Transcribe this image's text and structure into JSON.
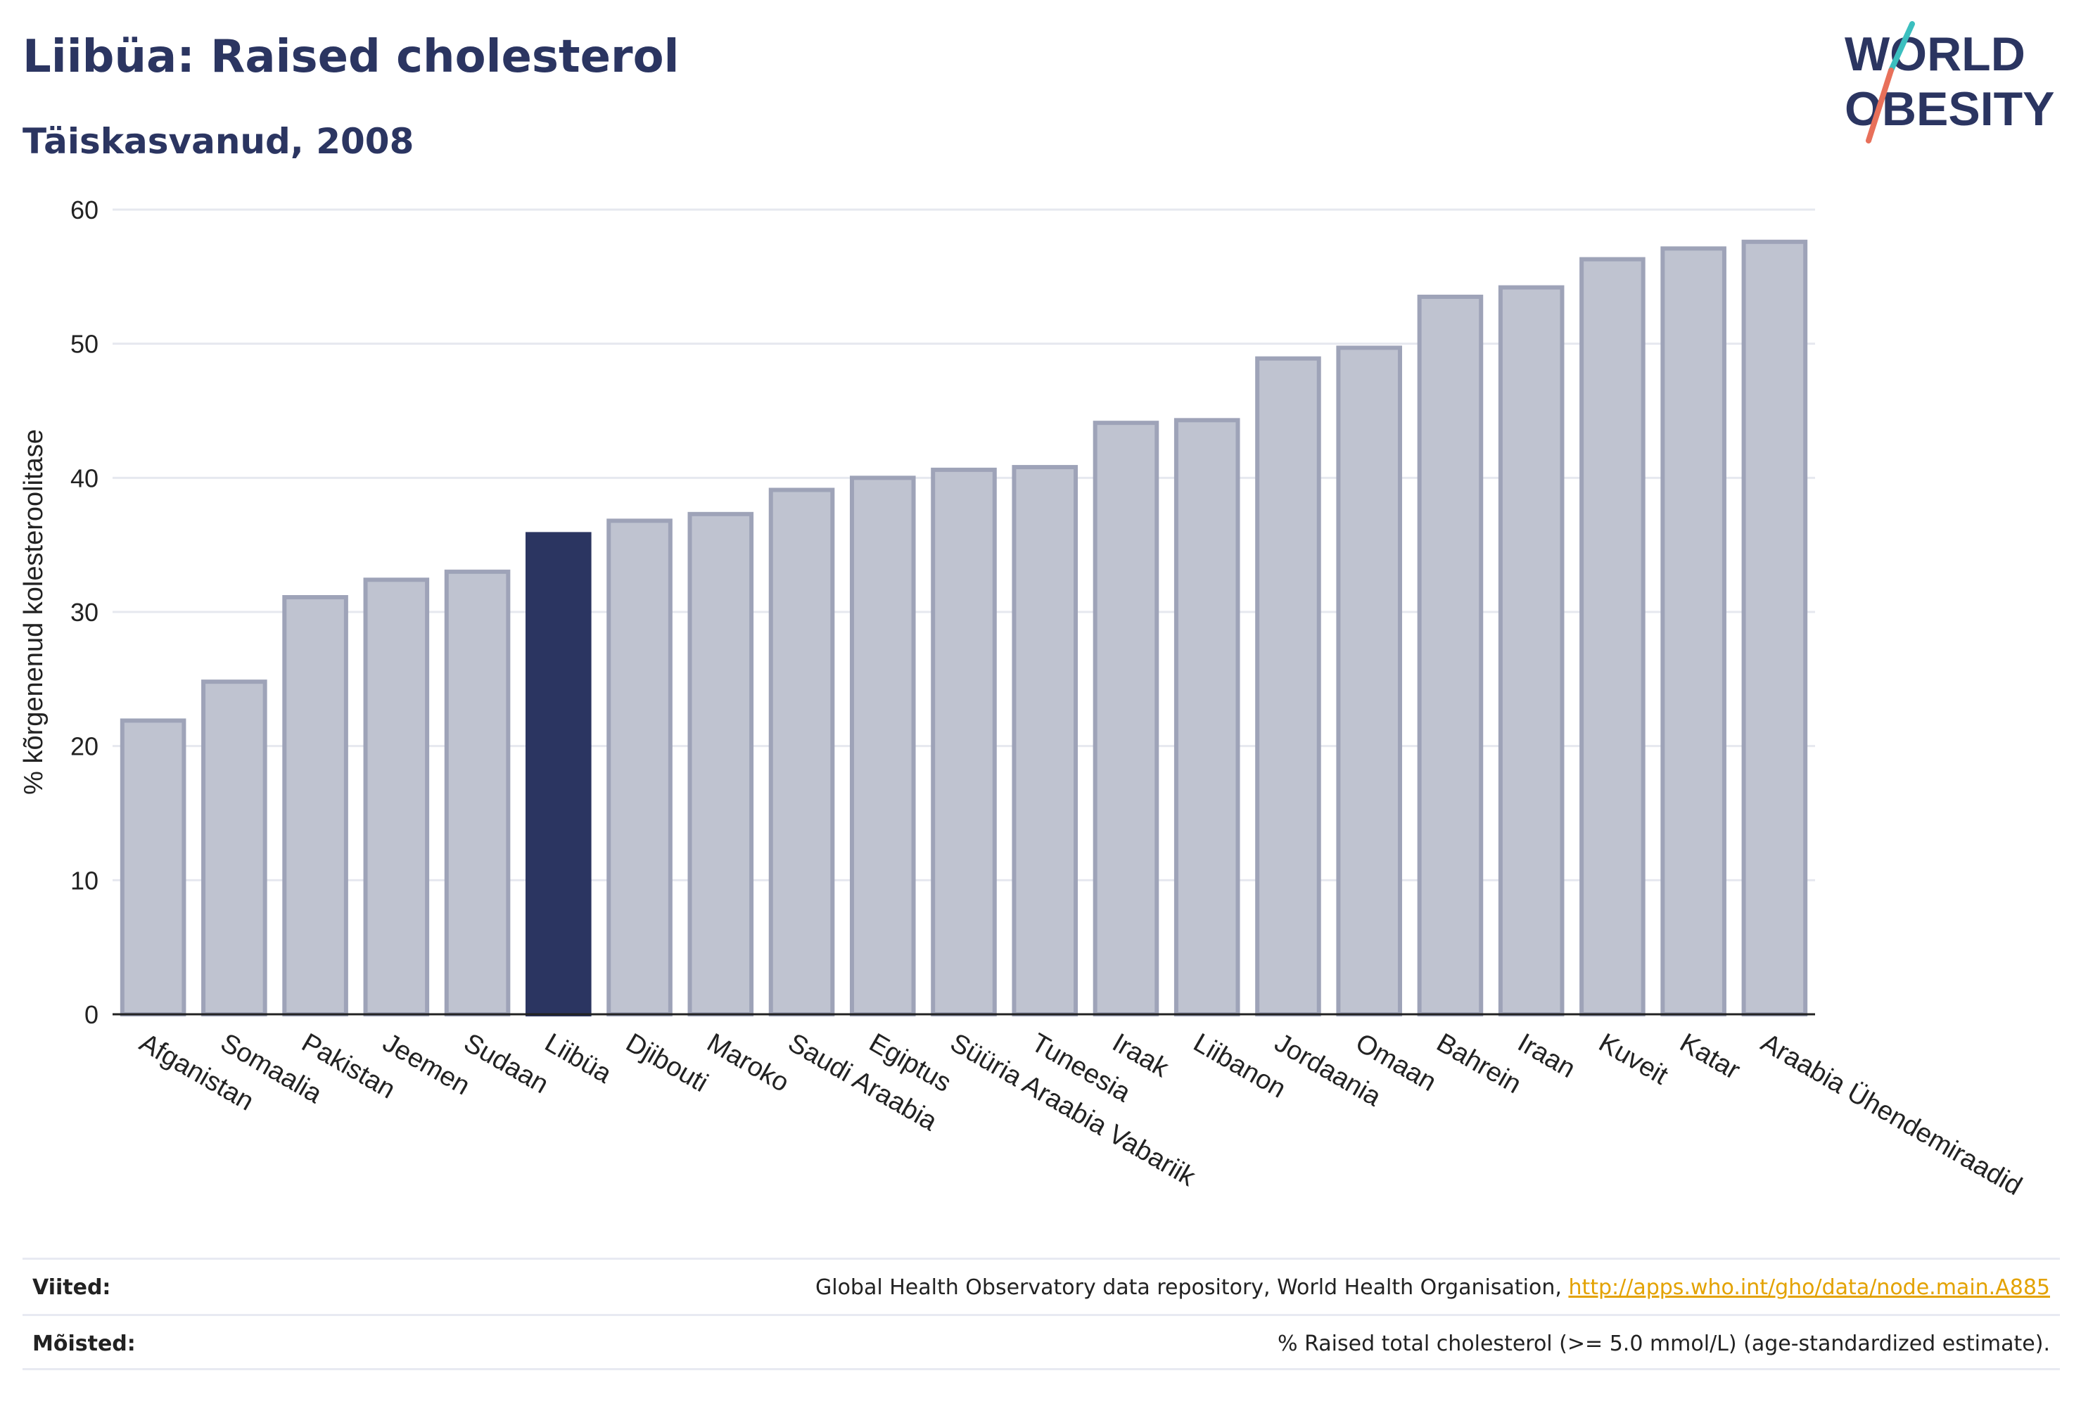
{
  "header": {
    "title": "Liibüa: Raised cholesterol",
    "subtitle": "Täiskasvanud, 2008"
  },
  "logo": {
    "line1": "WORLD",
    "line2": "OBESITY"
  },
  "chart_data": {
    "type": "bar",
    "ylabel": "% kõrgenenud kolesteroolitase",
    "ylim": [
      0,
      60
    ],
    "yticks": [
      0,
      10,
      20,
      30,
      40,
      50,
      60
    ],
    "grid": true,
    "highlight": "Liibüa",
    "categories": [
      "Afganistan",
      "Somaalia",
      "Pakistan",
      "Jeemen",
      "Sudaan",
      "Liibüa",
      "Djibouti",
      "Maroko",
      "Saudi Araabia",
      "Egiptus",
      "Süüria Araabia Vabariik",
      "Tuneesia",
      "Iraak",
      "Liibanon",
      "Jordaania",
      "Omaan",
      "Bahrein",
      "Iraan",
      "Kuveit",
      "Katar",
      "Araabia Ühendemiraadid"
    ],
    "values": [
      21.9,
      24.8,
      31.1,
      32.4,
      33.0,
      35.8,
      36.8,
      37.3,
      39.1,
      40.0,
      40.6,
      40.8,
      44.1,
      44.3,
      48.9,
      49.7,
      53.5,
      54.2,
      56.3,
      57.1,
      57.6
    ],
    "colors": {
      "bar": "#bfc3d0",
      "bar_edge": "#9ea3b8",
      "highlight": "#2b3561",
      "grid": "#e6e8ef",
      "axis": "#222222"
    }
  },
  "footer": {
    "sources_label": "Viited:",
    "sources_text": "Global Health Observatory data repository, World Health Organisation,",
    "sources_link": "http://apps.who.int/gho/data/node.main.A885",
    "definitions_label": "Mõisted:",
    "definitions_text": "% Raised total cholesterol (>= 5.0 mmol/L) (age-standardized estimate)."
  }
}
